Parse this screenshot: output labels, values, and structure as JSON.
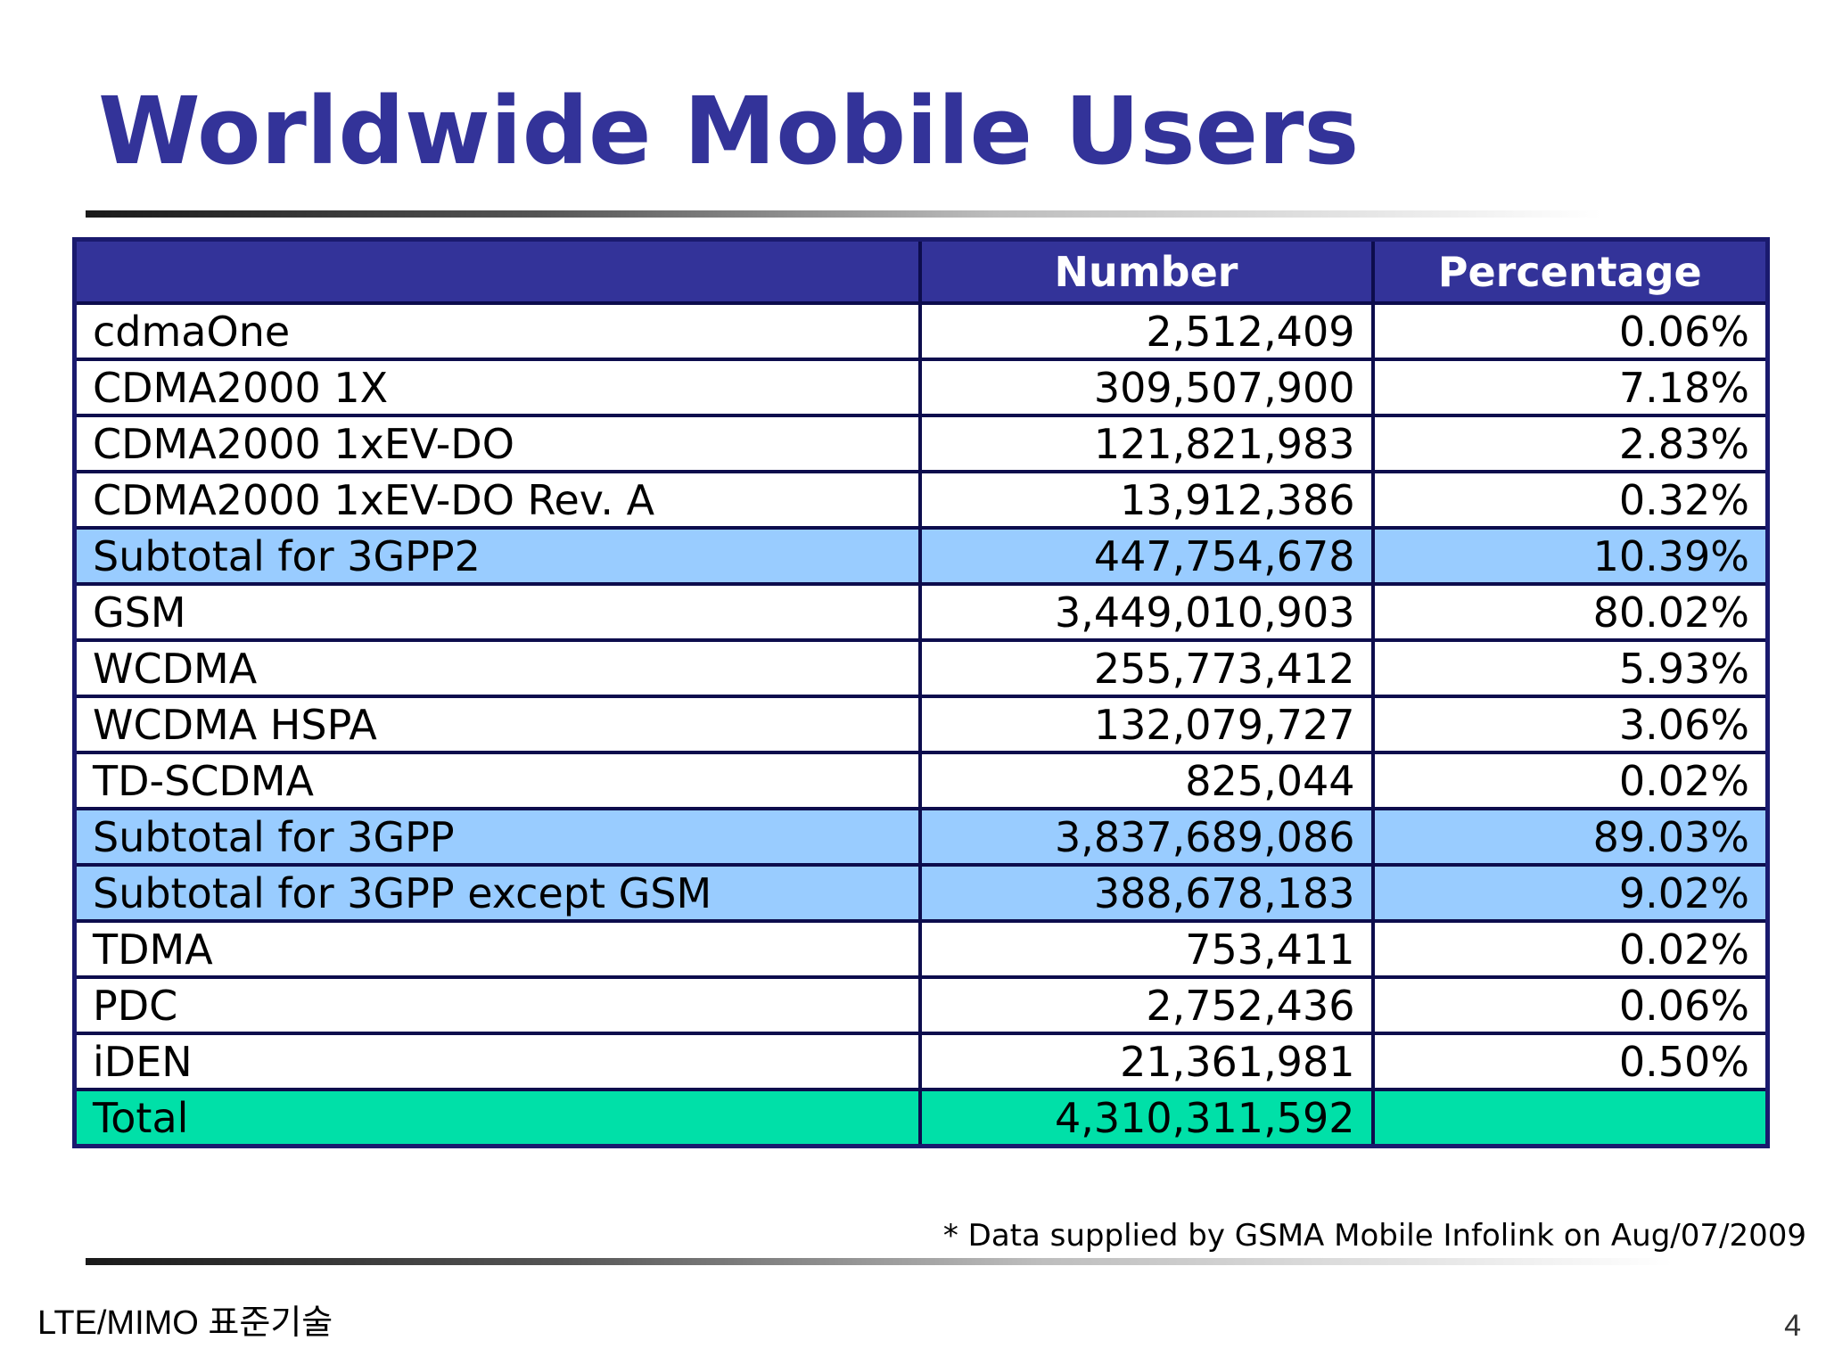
{
  "title": "Worldwide Mobile Users",
  "table": {
    "headers": [
      "",
      "Number",
      "Percentage"
    ],
    "rows": [
      {
        "label": "cdmaOne",
        "number": "2,512,409",
        "percentage": "0.06%",
        "type": "normal"
      },
      {
        "label": "CDMA2000 1X",
        "number": "309,507,900",
        "percentage": "7.18%",
        "type": "normal"
      },
      {
        "label": "CDMA2000 1xEV-DO",
        "number": "121,821,983",
        "percentage": "2.83%",
        "type": "normal"
      },
      {
        "label": "CDMA2000 1xEV-DO Rev. A",
        "number": "13,912,386",
        "percentage": "0.32%",
        "type": "normal"
      },
      {
        "label": "Subtotal for 3GPP2",
        "number": "447,754,678",
        "percentage": "10.39%",
        "type": "subtotal"
      },
      {
        "label": "GSM",
        "number": "3,449,010,903",
        "percentage": "80.02%",
        "type": "normal"
      },
      {
        "label": "WCDMA",
        "number": "255,773,412",
        "percentage": "5.93%",
        "type": "normal"
      },
      {
        "label": "WCDMA HSPA",
        "number": "132,079,727",
        "percentage": "3.06%",
        "type": "normal"
      },
      {
        "label": "TD-SCDMA",
        "number": "825,044",
        "percentage": "0.02%",
        "type": "normal"
      },
      {
        "label": "Subtotal for 3GPP",
        "number": "3,837,689,086",
        "percentage": "89.03%",
        "type": "subtotal"
      },
      {
        "label": "Subtotal for 3GPP except GSM",
        "number": "388,678,183",
        "percentage": "9.02%",
        "type": "subtotal"
      },
      {
        "label": "TDMA",
        "number": "753,411",
        "percentage": "0.02%",
        "type": "normal"
      },
      {
        "label": "PDC",
        "number": "2,752,436",
        "percentage": "0.06%",
        "type": "normal"
      },
      {
        "label": "iDEN",
        "number": "21,361,981",
        "percentage": "0.50%",
        "type": "normal"
      },
      {
        "label": "Total",
        "number": "4,310,311,592",
        "percentage": "",
        "type": "total"
      }
    ]
  },
  "footnote": "* Data supplied by GSMA Mobile Infolink on Aug/07/2009",
  "footer": "LTE/MIMO 표준기술",
  "page_number": "4",
  "colors": {
    "title": "#333399",
    "header_bg": "#333399",
    "subtotal_bg": "#99ccff",
    "total_bg": "#00e0a8"
  }
}
